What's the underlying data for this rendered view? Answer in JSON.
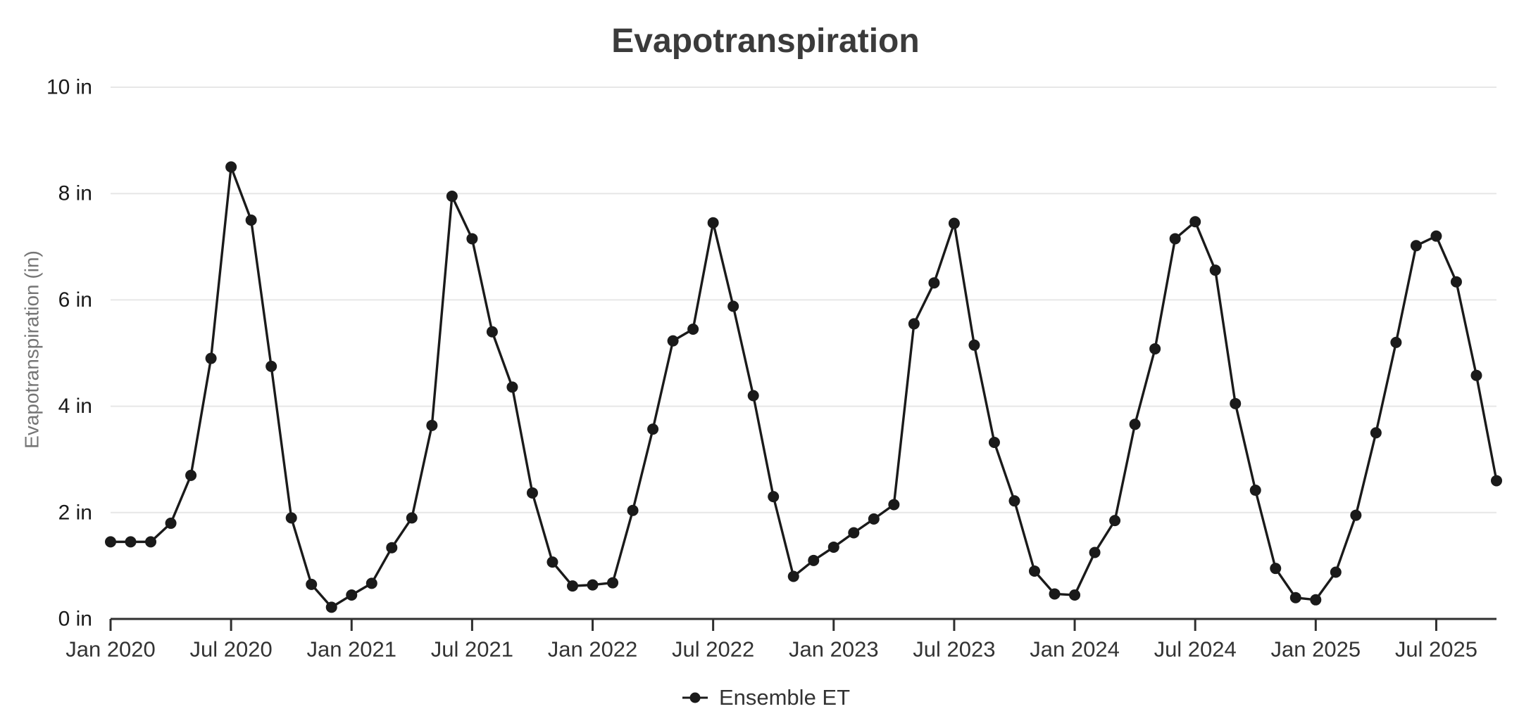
{
  "title": "Evapotranspiration",
  "legend": {
    "label": "Ensemble ET"
  },
  "y_axis": {
    "label": "Evapotranspiration (in)",
    "unit": "in",
    "min": 0,
    "max": 10,
    "step": 2,
    "tick_labels": [
      "0 in",
      "2 in",
      "4 in",
      "6 in",
      "8 in",
      "10 in"
    ]
  },
  "x_axis": {
    "tick_labels": [
      "Jan 2020",
      "Jul 2020",
      "Jan 2021",
      "Jul 2021",
      "Jan 2022",
      "Jul 2022",
      "Jan 2023",
      "Jul 2023",
      "Jan 2024",
      "Jul 2024",
      "Jan 2025",
      "Jul 2025"
    ],
    "tick_indices": [
      0,
      6,
      12,
      18,
      24,
      30,
      36,
      42,
      48,
      54,
      60,
      66
    ]
  },
  "colors": {
    "series": "#1a1a1a",
    "grid": "#e7e7e7",
    "axis": "#2f2f2f",
    "title": "#3b3b3b",
    "x_tick_label": "#333333",
    "y_tick_label": "#1a1a1a",
    "y_axis_label": "#757575",
    "background": "#ffffff"
  },
  "chart_data": {
    "type": "line",
    "title": "Evapotranspiration",
    "xlabel": "",
    "ylabel": "Evapotranspiration (in)",
    "ylim": [
      0,
      10
    ],
    "grid": "horizontal",
    "legend_position": "bottom-center",
    "x": [
      "Jan 2020",
      "Feb 2020",
      "Mar 2020",
      "Apr 2020",
      "May 2020",
      "Jun 2020",
      "Jul 2020",
      "Aug 2020",
      "Sep 2020",
      "Oct 2020",
      "Nov 2020",
      "Dec 2020",
      "Jan 2021",
      "Feb 2021",
      "Mar 2021",
      "Apr 2021",
      "May 2021",
      "Jun 2021",
      "Jul 2021",
      "Aug 2021",
      "Sep 2021",
      "Oct 2021",
      "Nov 2021",
      "Dec 2021",
      "Jan 2022",
      "Feb 2022",
      "Mar 2022",
      "Apr 2022",
      "May 2022",
      "Jun 2022",
      "Jul 2022",
      "Aug 2022",
      "Sep 2022",
      "Oct 2022",
      "Nov 2022",
      "Dec 2022",
      "Jan 2023",
      "Feb 2023",
      "Mar 2023",
      "Apr 2023",
      "May 2023",
      "Jun 2023",
      "Jul 2023",
      "Aug 2023",
      "Sep 2023",
      "Oct 2023",
      "Nov 2023",
      "Dec 2023",
      "Jan 2024",
      "Feb 2024",
      "Mar 2024",
      "Apr 2024",
      "May 2024",
      "Jun 2024",
      "Jul 2024",
      "Aug 2024",
      "Sep 2024",
      "Oct 2024",
      "Nov 2024",
      "Dec 2024",
      "Jan 2025",
      "Feb 2025",
      "Mar 2025",
      "Apr 2025",
      "May 2025",
      "Jun 2025",
      "Jul 2025",
      "Aug 2025",
      "Sep 2025",
      "Oct 2025"
    ],
    "series": [
      {
        "name": "Ensemble ET",
        "marker": "circle",
        "color": "#1a1a1a",
        "values": [
          1.45,
          1.45,
          1.45,
          1.8,
          2.7,
          4.9,
          8.5,
          7.5,
          4.75,
          1.9,
          0.65,
          0.22,
          0.45,
          0.67,
          1.34,
          1.9,
          3.64,
          7.95,
          7.15,
          5.4,
          4.36,
          2.37,
          1.07,
          0.62,
          0.64,
          0.68,
          2.04,
          3.57,
          5.23,
          5.45,
          7.45,
          5.88,
          4.2,
          2.3,
          0.8,
          1.1,
          1.35,
          1.62,
          1.88,
          2.15,
          5.55,
          6.32,
          7.44,
          5.15,
          3.32,
          2.22,
          0.9,
          0.47,
          0.45,
          1.25,
          1.85,
          3.66,
          5.08,
          7.15,
          7.47,
          6.56,
          4.05,
          2.42,
          0.95,
          0.4,
          0.36,
          0.88,
          1.95,
          3.5,
          5.2,
          7.02,
          7.2,
          6.34,
          4.58,
          2.6
        ]
      }
    ]
  }
}
